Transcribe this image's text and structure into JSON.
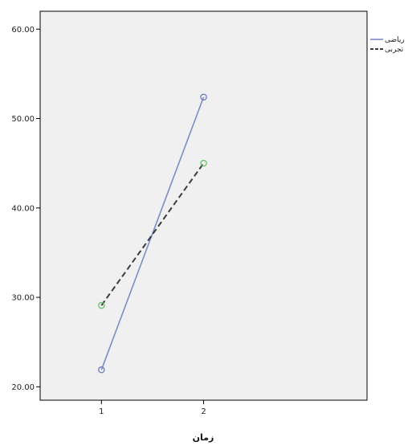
{
  "chart_data": {
    "type": "line",
    "title": "",
    "xlabel": "زمان",
    "ylabel": "",
    "categories": [
      "1",
      "2"
    ],
    "x": [
      1,
      2
    ],
    "xlim": [
      0.4,
      3.6
    ],
    "ylim": [
      18.5,
      62
    ],
    "yticks": [
      20,
      30,
      40,
      50,
      60
    ],
    "ytick_labels": [
      "20.00",
      "30.00",
      "40.00",
      "50.00",
      "60.00"
    ],
    "grid": false,
    "legend_position": "top-right",
    "series": [
      {
        "name": "ریاضی",
        "values": [
          21.9,
          52.4
        ],
        "color": "#7b8cc7",
        "marker_color": "#6b7cc0",
        "dash": "solid"
      },
      {
        "name": "تجربی",
        "values": [
          29.1,
          45.0
        ],
        "color": "#3c3c3c",
        "marker_color": "#6cc06c",
        "dash": "dashed"
      }
    ],
    "colors": {
      "plot_background": "#f0f0f0",
      "axis": "#000000"
    }
  }
}
